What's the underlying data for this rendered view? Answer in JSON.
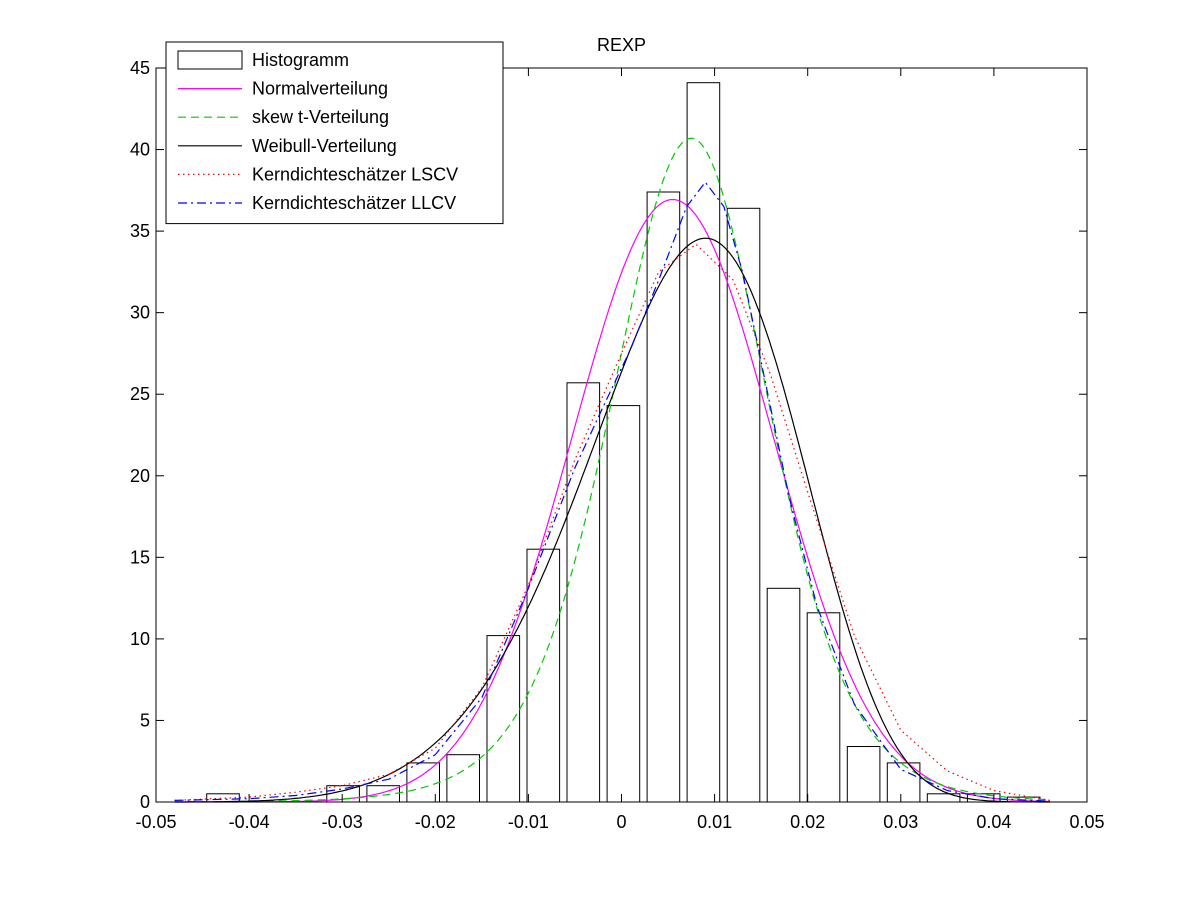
{
  "chart_data": {
    "type": "bar",
    "title": "REXP",
    "xlabel": "",
    "ylabel": "",
    "xlim": [
      -0.05,
      0.05
    ],
    "ylim": [
      0,
      45
    ],
    "grid": false,
    "legend_placement": "top-left",
    "x_ticks": [
      {
        "value": -0.05,
        "label": "-0.05"
      },
      {
        "value": -0.04,
        "label": "-0.04"
      },
      {
        "value": -0.03,
        "label": "-0.03"
      },
      {
        "value": -0.02,
        "label": "-0.02"
      },
      {
        "value": -0.01,
        "label": "-0.01"
      },
      {
        "value": 0,
        "label": "0"
      },
      {
        "value": 0.01,
        "label": "0.01"
      },
      {
        "value": 0.02,
        "label": "0.02"
      },
      {
        "value": 0.03,
        "label": "0.03"
      },
      {
        "value": 0.04,
        "label": "0.04"
      },
      {
        "value": 0.05,
        "label": "0.05"
      }
    ],
    "y_ticks": [
      {
        "value": 0,
        "label": "0"
      },
      {
        "value": 5,
        "label": "5"
      },
      {
        "value": 10,
        "label": "10"
      },
      {
        "value": 15,
        "label": "15"
      },
      {
        "value": 20,
        "label": "20"
      },
      {
        "value": 25,
        "label": "25"
      },
      {
        "value": 30,
        "label": "30"
      },
      {
        "value": 35,
        "label": "35"
      },
      {
        "value": 40,
        "label": "40"
      },
      {
        "value": 45,
        "label": "45"
      }
    ],
    "histogram": {
      "name": "Histogramm",
      "bin_width": 0.0043,
      "bar_width": 0.0035,
      "centers": [
        -0.0428,
        -0.0385,
        -0.0342,
        -0.0299,
        -0.0256,
        -0.0213,
        -0.017,
        -0.0127,
        -0.0084,
        -0.0041,
        0.0002,
        0.0045,
        0.0088,
        0.0131,
        0.0174,
        0.0217,
        0.026,
        0.0303,
        0.0346,
        0.0389,
        0.0432
      ],
      "values": [
        0.5,
        0,
        0,
        1.0,
        1.0,
        2.4,
        2.9,
        10.2,
        15.5,
        25.7,
        24.3,
        37.4,
        44.1,
        36.4,
        13.1,
        11.6,
        3.4,
        2.4,
        0.5,
        0.5,
        0.3
      ]
    },
    "series": [
      {
        "name": "Normalverteilung",
        "color": "#ff00ff",
        "dash": "solid",
        "kind": "normal",
        "mean": 0.0055,
        "sd": 0.0108
      },
      {
        "name": "skew t-Verteilung",
        "color": "#00cc00",
        "dash": "dashed",
        "kind": "skewt",
        "mode": 0.0075,
        "sd_left": 0.0088,
        "sd_right": 0.0085,
        "peak": 40.7,
        "df": 8
      },
      {
        "name": "Weibull-Verteilung",
        "color": "#000000",
        "dash": "solid",
        "kind": "weibull",
        "loc": -0.056,
        "scale": 0.0669,
        "shape": 6.2
      },
      {
        "name": "Kerndichteschätzer LSCV",
        "color": "#ff0000",
        "dash": "dotted",
        "kind": "kde",
        "x": [
          -0.048,
          -0.04,
          -0.035,
          -0.03,
          -0.025,
          -0.02,
          -0.015,
          -0.01,
          -0.005,
          0,
          0.004,
          0.008,
          0.012,
          0.016,
          0.02,
          0.025,
          0.03,
          0.035,
          0.04,
          0.046
        ],
        "y": [
          0.1,
          0.3,
          0.6,
          1.0,
          1.7,
          3.3,
          7.0,
          13.3,
          21.0,
          27.5,
          32.5,
          34.2,
          32.0,
          26.2,
          19.0,
          10.2,
          4.4,
          1.9,
          0.7,
          0.1
        ]
      },
      {
        "name": "Kerndichteschätzer LLCV",
        "color": "#0000ff",
        "dash": "dashdot",
        "kind": "kde",
        "x": [
          -0.048,
          -0.04,
          -0.035,
          -0.03,
          -0.025,
          -0.02,
          -0.015,
          -0.01,
          -0.005,
          -0.002,
          0.001,
          0.004,
          0.007,
          0.009,
          0.011,
          0.013,
          0.015,
          0.018,
          0.021,
          0.025,
          0.03,
          0.035,
          0.04,
          0.046
        ],
        "y": [
          0.1,
          0.2,
          0.4,
          0.8,
          1.4,
          2.9,
          6.4,
          13.1,
          20.5,
          24.2,
          27.8,
          32.0,
          36.5,
          38.0,
          36.5,
          32.5,
          27.0,
          18.7,
          12.0,
          6.0,
          2.0,
          0.7,
          0.2,
          0.05
        ]
      }
    ]
  }
}
